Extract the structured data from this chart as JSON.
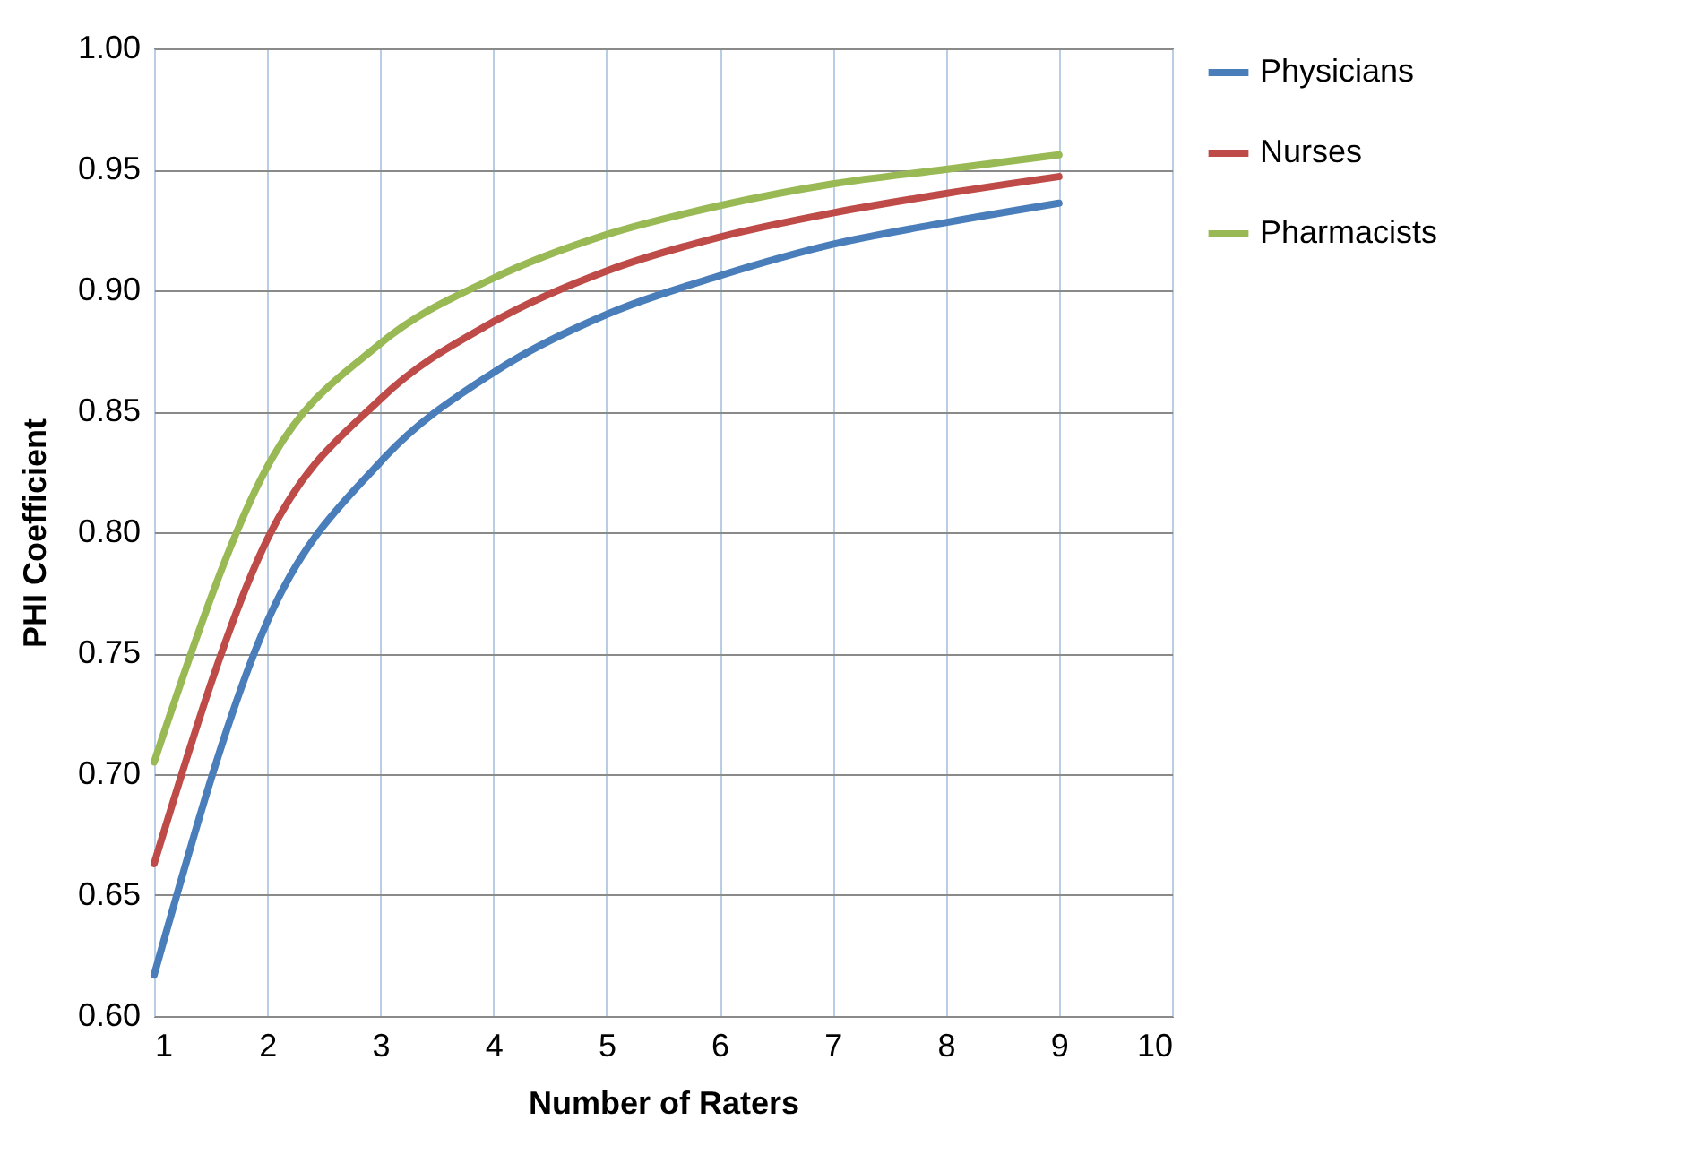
{
  "chart_data": {
    "type": "line",
    "xlabel": "Number of Raters",
    "ylabel": "PHI Coefficient",
    "x": [
      1,
      2,
      3,
      4,
      5,
      6,
      7,
      8,
      9
    ],
    "series": [
      {
        "name": "Physicians",
        "color": "#4a7ebb",
        "values": [
          0.617,
          0.763,
          0.829,
          0.866,
          0.89,
          0.906,
          0.919,
          0.928,
          0.936
        ]
      },
      {
        "name": "Nurses",
        "color": "#be4b48",
        "values": [
          0.663,
          0.797,
          0.855,
          0.887,
          0.908,
          0.922,
          0.932,
          0.94,
          0.947
        ]
      },
      {
        "name": "Pharmacists",
        "color": "#98b954",
        "values": [
          0.705,
          0.827,
          0.878,
          0.905,
          0.923,
          0.935,
          0.944,
          0.95,
          0.956
        ]
      }
    ],
    "xlim": [
      1,
      10
    ],
    "xticks": [
      1,
      2,
      3,
      4,
      5,
      6,
      7,
      8,
      9,
      10
    ],
    "ylim": [
      0.6,
      1.0
    ],
    "yticks": [
      {
        "value": 0.6,
        "label": "0.60"
      },
      0.65,
      {
        "value": 0.7,
        "label": "0.70"
      },
      0.75,
      {
        "value": 0.8,
        "label": "0.80"
      },
      0.85,
      {
        "value": 0.9,
        "label": "0.90"
      },
      0.95,
      {
        "value": 1.0,
        "label": "1.00"
      }
    ],
    "grid": true,
    "legend": "right",
    "marker": "none",
    "line_style": "solid"
  }
}
